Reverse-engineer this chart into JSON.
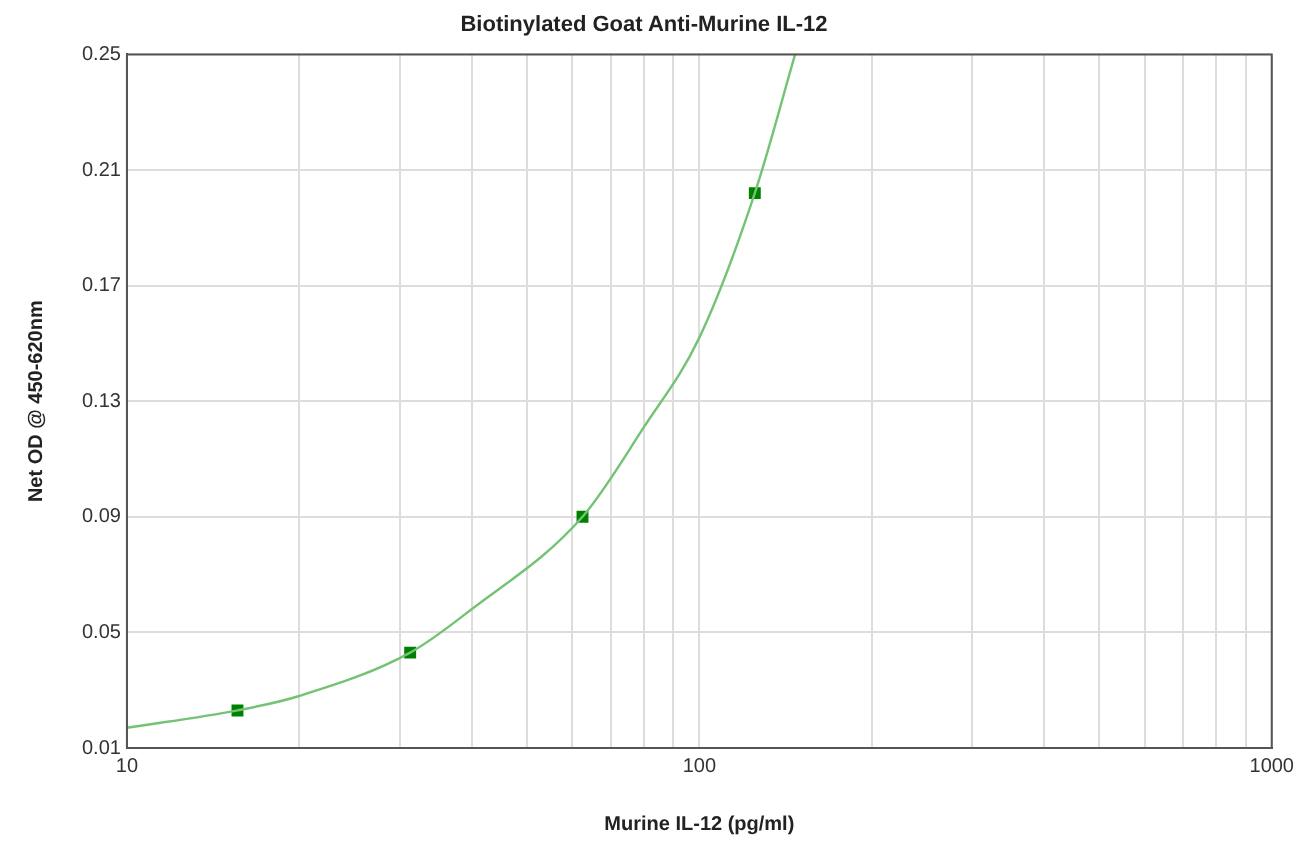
{
  "chart_data": {
    "type": "scatter",
    "title": "Biotinylated Goat Anti-Murine IL-12",
    "xlabel": "Murine IL-12 (pg/ml)",
    "ylabel": "Net OD @ 450-620nm",
    "log": "x",
    "grid": true,
    "legend": false,
    "xlim": [
      10,
      1000
    ],
    "xticks": [
      10,
      {
        "value": 20,
        "label": null
      },
      {
        "value": 30,
        "label": null
      },
      {
        "value": 40,
        "label": null
      },
      {
        "value": 50,
        "label": null
      },
      {
        "value": 60,
        "label": null
      },
      {
        "value": 70,
        "label": null
      },
      {
        "value": 80,
        "label": null
      },
      {
        "value": 90,
        "label": null
      },
      100,
      {
        "value": 200,
        "label": null
      },
      {
        "value": 300,
        "label": null
      },
      {
        "value": 400,
        "label": null
      },
      {
        "value": 500,
        "label": null
      },
      {
        "value": 600,
        "label": null
      },
      {
        "value": 700,
        "label": null
      },
      {
        "value": 800,
        "label": null
      },
      {
        "value": 900,
        "label": null
      },
      1000
    ],
    "ylim": [
      0.01,
      0.25
    ],
    "yticks": [
      0.01,
      0.05,
      0.09,
      0.13,
      0.17,
      0.21,
      0.25
    ],
    "series": [
      {
        "type": "line",
        "color": "#74c274",
        "marker": "none",
        "line_style": "solid",
        "x": [
          10,
          15.6,
          20,
          31.25,
          40,
          62.5,
          80,
          100,
          125,
          147
        ],
        "values": [
          0.017,
          0.023,
          0.028,
          0.043,
          0.058,
          0.09,
          0.121,
          0.152,
          0.202,
          0.25
        ]
      },
      {
        "type": "scatter",
        "color": "#008000",
        "marker": "square",
        "x": [
          15.6,
          31.25,
          62.5,
          125
        ],
        "values": [
          0.023,
          0.043,
          0.09,
          0.202
        ]
      }
    ]
  }
}
